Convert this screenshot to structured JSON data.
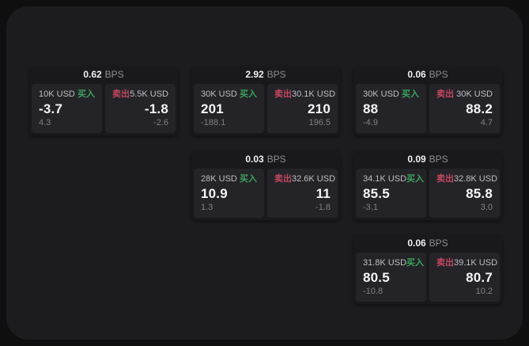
{
  "labels": {
    "bps_unit": "BPS",
    "buy": "买入",
    "sell": "卖出"
  },
  "colors": {
    "page_bg": "#0f0f10",
    "panel_bg": "#1c1c1e",
    "card_bg": "#19191b",
    "cell_bg": "#242428",
    "buy_green": "#3aa35c",
    "sell_red": "#c1475f",
    "price_white": "#f5f5f7",
    "label_gray": "#bdbdc3",
    "sub_gray": "#7e7e84"
  },
  "cards": [
    {
      "bps": "0.62",
      "buy": {
        "amount": "10K USD",
        "price": "-3.7",
        "sub": "4.3"
      },
      "sell": {
        "amount": "5.5K USD",
        "price": "-1.8",
        "sub": "-2.6"
      }
    },
    {
      "bps": "2.92",
      "buy": {
        "amount": "30K USD",
        "price": "201",
        "sub": "-188.1"
      },
      "sell": {
        "amount": "30.1K USD",
        "price": "210",
        "sub": "196.5"
      }
    },
    {
      "bps": "0.06",
      "buy": {
        "amount": "30K USD",
        "price": "88",
        "sub": "-4.9"
      },
      "sell": {
        "amount": "30K USD",
        "price": "88.2",
        "sub": "4.7"
      }
    },
    {
      "bps": "0.03",
      "buy": {
        "amount": "28K USD",
        "price": "10.9",
        "sub": "1.3"
      },
      "sell": {
        "amount": "32.6K USD",
        "price": "11",
        "sub": "-1.8"
      }
    },
    {
      "bps": "0.09",
      "buy": {
        "amount": "34.1K USD",
        "price": "85.5",
        "sub": "-3.1"
      },
      "sell": {
        "amount": "32.8K USD",
        "price": "85.8",
        "sub": "3.0"
      }
    },
    {
      "bps": "0.06",
      "buy": {
        "amount": "31.8K USD",
        "price": "80.5",
        "sub": "-10.8"
      },
      "sell": {
        "amount": "39.1K USD",
        "price": "80.7",
        "sub": "10.2"
      }
    }
  ]
}
